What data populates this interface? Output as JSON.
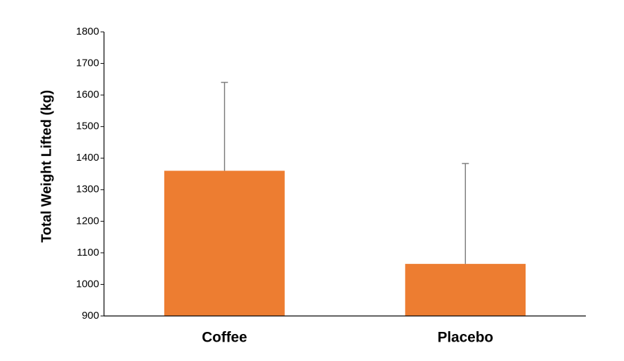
{
  "chart_data": {
    "type": "bar",
    "y_label": "Total Weight Lifted (kg)",
    "categories": [
      "Coffee",
      "Placebo"
    ],
    "values": [
      1360,
      1065
    ],
    "errors": [
      280,
      318
    ],
    "color": "#ed7d31",
    "error_color": "#7f7f7f",
    "ylim": [
      900,
      1800
    ],
    "yticks": [
      900,
      1000,
      1100,
      1200,
      1300,
      1400,
      1500,
      1600,
      1700,
      1800
    ],
    "grid": false
  }
}
